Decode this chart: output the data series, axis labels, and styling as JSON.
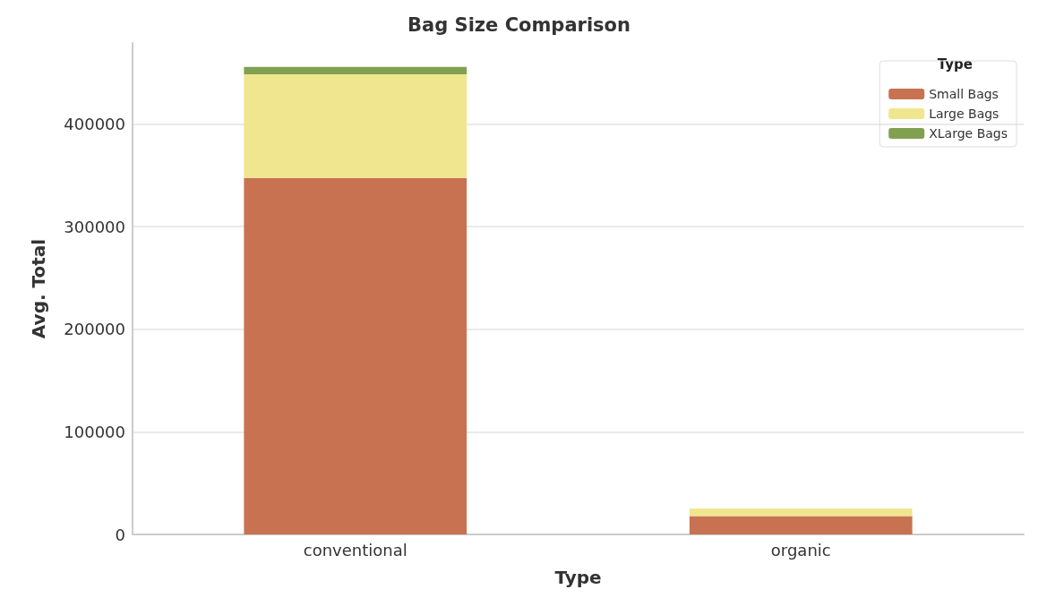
{
  "chart_data": {
    "type": "bar",
    "title": "Bag Size Comparison",
    "xlabel": "Type",
    "ylabel": "Avg. Total",
    "legend_title": "Type",
    "categories": [
      "conventional",
      "organic"
    ],
    "series": [
      {
        "name": "Small Bags",
        "color": "#c87252",
        "values": [
          347500,
          17800
        ]
      },
      {
        "name": "Large Bags",
        "color": "#f0e68f",
        "values": [
          101000,
          7400
        ]
      },
      {
        "name": "XLarge Bags",
        "color": "#82a052",
        "values": [
          7100,
          0
        ]
      }
    ],
    "stacked": true,
    "ylim": [
      0,
      479000
    ],
    "yticks": [
      0,
      100000,
      200000,
      300000,
      400000
    ],
    "grid": "y",
    "legend": "top right"
  }
}
